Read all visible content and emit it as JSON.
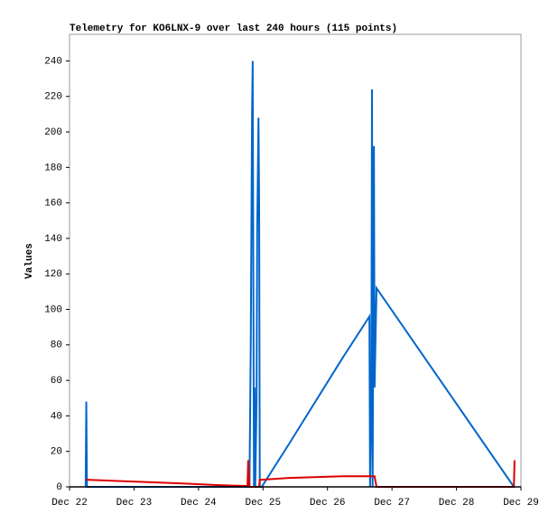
{
  "chart_data": {
    "type": "line",
    "title": "Telemetry for KO6LNX-9 over last 240 hours (115 points)",
    "y_label": "Values",
    "x": [
      0.25,
      0.26,
      0.27,
      0.99,
      1.72,
      2.28,
      2.76,
      2.77,
      2.79,
      2.8,
      2.81,
      2.83,
      2.84,
      2.86,
      2.87,
      2.88,
      2.9,
      2.91,
      2.93,
      2.94,
      2.95,
      2.98,
      3.4,
      4.24,
      4.65,
      4.66,
      4.68,
      4.69,
      4.7,
      4.72,
      4.73,
      4.76,
      6.89,
      6.9
    ],
    "series": [
      {
        "color": "#0066cc",
        "values": [
          0,
          48,
          0,
          0,
          0,
          0,
          0,
          0,
          0,
          40,
          80,
          208,
          240,
          0,
          56,
          0,
          48,
          145,
          208,
          160,
          0,
          0,
          24,
          73,
          96,
          0,
          48,
          224,
          0,
          192,
          56,
          112,
          0,
          0
        ]
      },
      {
        "color": "#dd0000",
        "values": [
          4,
          4,
          4,
          3,
          2,
          1,
          0.5,
          15,
          0,
          0,
          0,
          0,
          0,
          0,
          0,
          0,
          0,
          0,
          0,
          0,
          4,
          4,
          5,
          6,
          6,
          6,
          6,
          6,
          6,
          6,
          6,
          0,
          0,
          15
        ]
      }
    ],
    "xlim": [
      0,
      7
    ],
    "xticks": [
      {
        "value": 0,
        "label": "Dec 22"
      },
      {
        "value": 1,
        "label": "Dec 23"
      },
      {
        "value": 2,
        "label": "Dec 24"
      },
      {
        "value": 3,
        "label": "Dec 25"
      },
      {
        "value": 4,
        "label": "Dec 26"
      },
      {
        "value": 5,
        "label": "Dec 27"
      },
      {
        "value": 6,
        "label": "Dec 28"
      },
      {
        "value": 7,
        "label": "Dec 29"
      }
    ],
    "ylim": [
      0,
      255
    ],
    "yticks": [
      0,
      20,
      40,
      60,
      80,
      100,
      120,
      140,
      160,
      180,
      200,
      220,
      240
    ]
  }
}
